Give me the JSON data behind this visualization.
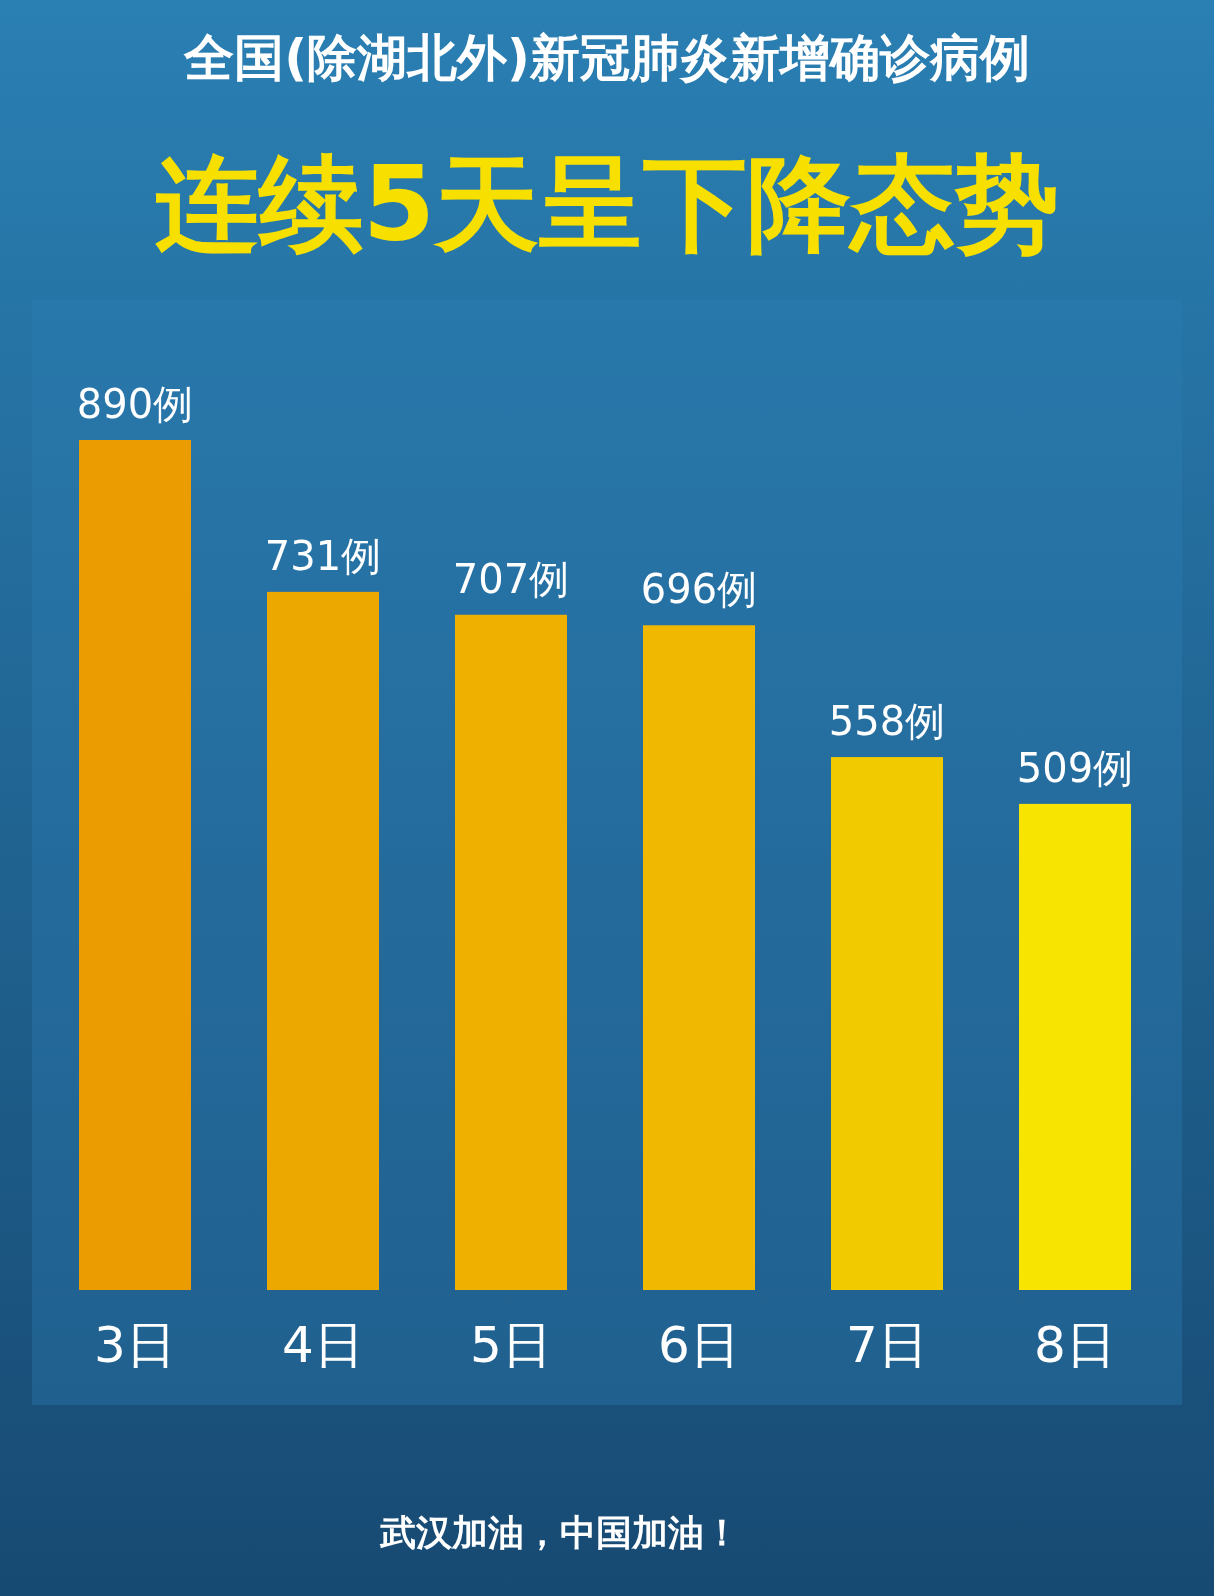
{
  "chart_data": {
    "type": "bar",
    "title": "全国(除湖北外)新冠肺炎新增确诊病例",
    "subtitle": "连续5天呈下降态势",
    "categories": [
      "3日",
      "4日",
      "5日",
      "6日",
      "7日",
      "8日"
    ],
    "values": [
      890,
      731,
      707,
      696,
      558,
      509
    ],
    "colors": [
      "#eb9c00",
      "#eda800",
      "#efb000",
      "#f0b800",
      "#f2ca00",
      "#f7e400"
    ],
    "value_labels": [
      "890例",
      "731例",
      "707例",
      "696例",
      "558例",
      "509例"
    ],
    "annotations": [
      "武汉加油，中国加油！"
    ]
  }
}
